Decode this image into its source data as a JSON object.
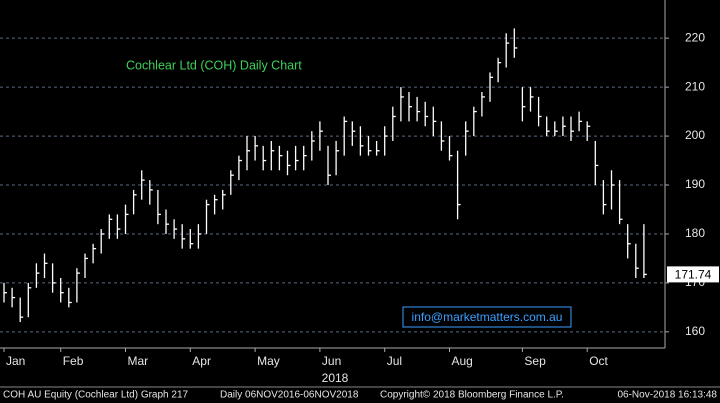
{
  "chart_data": {
    "type": "ohlc",
    "title": "Cochlear Ltd (COH) Daily Chart",
    "watermark": "info@marketmatters.com.au",
    "year_label": "2018",
    "footer": [
      "COH AU Equity (Cochlear Ltd) Graph 217",
      "Daily 06NOV2016-06NOV2018",
      "Copyright© 2018 Bloomberg Finance L.P.",
      "06-Nov-2018 16:13:48"
    ],
    "categories": [
      "Jan",
      null,
      null,
      null,
      null,
      null,
      null,
      "Feb",
      null,
      null,
      null,
      null,
      null,
      null,
      null,
      "Mar",
      null,
      null,
      null,
      null,
      null,
      null,
      null,
      "Apr",
      null,
      null,
      null,
      null,
      null,
      null,
      null,
      "May",
      null,
      null,
      null,
      null,
      null,
      null,
      null,
      "Jun",
      null,
      null,
      null,
      null,
      null,
      null,
      null,
      "Jul",
      null,
      null,
      null,
      null,
      null,
      null,
      null,
      "Aug",
      null,
      null,
      null,
      null,
      null,
      null,
      null,
      null,
      "Sep",
      null,
      null,
      null,
      null,
      null,
      null,
      null,
      "Oct",
      null,
      null,
      null,
      null,
      null,
      null,
      null
    ],
    "series": [
      {
        "name": "COH AU Equity",
        "color": "#ffffff",
        "high": [
          170,
          169,
          167,
          170,
          174,
          176,
          174,
          171,
          169,
          173,
          176,
          178,
          181,
          184,
          184,
          186,
          189,
          193,
          191,
          189,
          185,
          183,
          182,
          181,
          182,
          187,
          188,
          189,
          193,
          196,
          200,
          200,
          198,
          199,
          198,
          197,
          198,
          198,
          201,
          203,
          198,
          199,
          204,
          203,
          202,
          200,
          199,
          202,
          206,
          210,
          209,
          208,
          207,
          206,
          203,
          200,
          197,
          203,
          206,
          209,
          213,
          216,
          221,
          222,
          210,
          210,
          208,
          204,
          203,
          204,
          204,
          205,
          203,
          199,
          191,
          193,
          191,
          182,
          178,
          182
        ],
        "low": [
          166,
          165,
          162,
          163,
          169,
          171,
          168,
          166,
          165,
          166,
          171,
          174,
          176,
          179,
          179,
          180,
          184,
          187,
          186,
          182,
          180,
          179,
          177,
          177,
          177,
          180,
          184,
          185,
          188,
          191,
          193,
          195,
          193,
          193,
          193,
          192,
          193,
          193,
          195,
          197,
          190,
          192,
          196,
          198,
          196,
          196,
          196,
          196,
          199,
          203,
          203,
          203,
          202,
          200,
          197,
          195,
          183,
          196,
          200,
          204,
          207,
          211,
          214,
          216,
          203,
          205,
          202,
          200,
          200,
          200,
          199,
          201,
          199,
          190,
          184,
          185,
          182,
          175,
          171,
          171
        ],
        "close": [
          168,
          167,
          163,
          169,
          172,
          174,
          170,
          168,
          166,
          172,
          175,
          177,
          180,
          183,
          181,
          184,
          188,
          191,
          189,
          184,
          182,
          181,
          179,
          178,
          180,
          186,
          187,
          188,
          192,
          195,
          197,
          198,
          195,
          197,
          196,
          194,
          195,
          196,
          199,
          201,
          192,
          197,
          203,
          201,
          198,
          197,
          197,
          200,
          204,
          208,
          206,
          205,
          204,
          203,
          199,
          196,
          186,
          201,
          205,
          208,
          212,
          215,
          219,
          218,
          206,
          208,
          204,
          201,
          201,
          202,
          201,
          203,
          202,
          194,
          186,
          190,
          183,
          178,
          173,
          171.74
        ]
      }
    ],
    "ylim": [
      156.7,
      227.8
    ],
    "yticks": [
      160,
      170,
      180,
      190,
      200,
      210,
      220
    ],
    "grid": true
  }
}
